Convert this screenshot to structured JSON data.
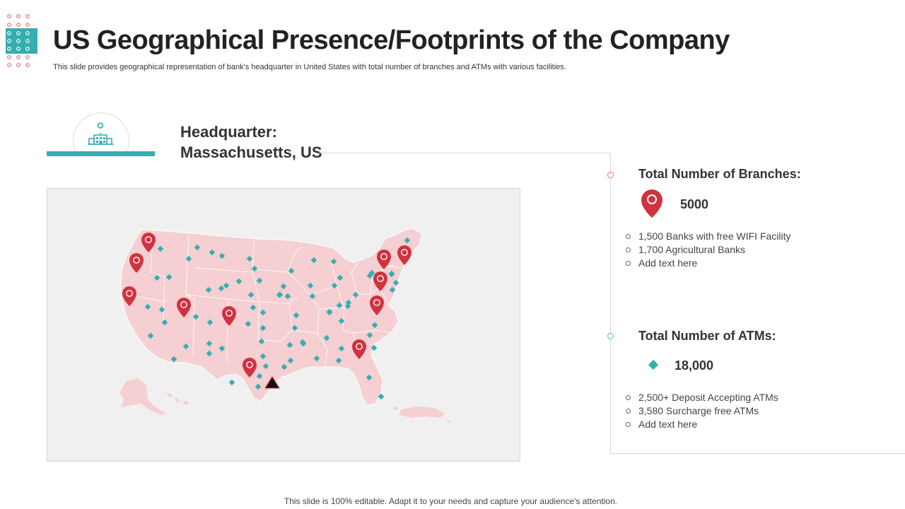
{
  "header": {
    "title": "US Geographical Presence/Footprints of the Company",
    "subtitle": "This slide provides geographical representation of bank's headquarter in United States with total number of branches and ATMs with various facilities."
  },
  "headquarter": {
    "label": "Headquarter:",
    "location": "Massachusetts, US"
  },
  "branches": {
    "title": "Total Number of Branches:",
    "count": "5000",
    "items": [
      "1,500 Banks with free WIFI Facility",
      "1,700 Agricultural  Banks",
      "Add text here"
    ]
  },
  "atms": {
    "title": "Total Number of ATMs:",
    "count": "18,000",
    "items": [
      "2,500+ Deposit Accepting ATMs",
      "3,580 Surcharge free ATMs",
      "Add text here"
    ]
  },
  "footer": {
    "note": "This slide is 100% editable. Adapt it to your needs and capture your audience's attention."
  },
  "colors": {
    "accent_teal": "#35aeb0",
    "pin_red": "#d0323f",
    "map_fill": "#f5cfd2",
    "deco_red": "#e0707a"
  }
}
